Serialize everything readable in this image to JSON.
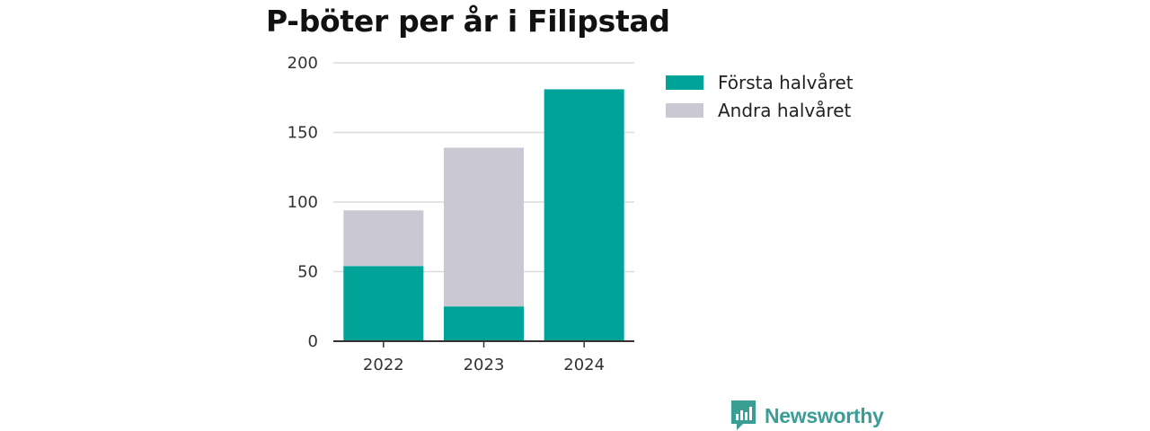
{
  "chart_data": {
    "type": "bar",
    "stacked": true,
    "title": "P-böter per år i Filipstad",
    "categories": [
      "2022",
      "2023",
      "2024"
    ],
    "series": [
      {
        "name": "Första halvåret",
        "values": [
          54,
          25,
          181
        ],
        "color": "#00a398"
      },
      {
        "name": "Andra halvåret",
        "values": [
          40,
          114,
          0
        ],
        "color": "#c9c8d3"
      }
    ],
    "ylim": [
      0,
      200
    ],
    "yticks": [
      "0",
      "50",
      "100",
      "150",
      "200"
    ],
    "grid": true,
    "legend_position": "right"
  },
  "brand": {
    "name": "Newsworthy",
    "color": "#3a9e95",
    "icon": "newsworthy-logo-icon"
  }
}
